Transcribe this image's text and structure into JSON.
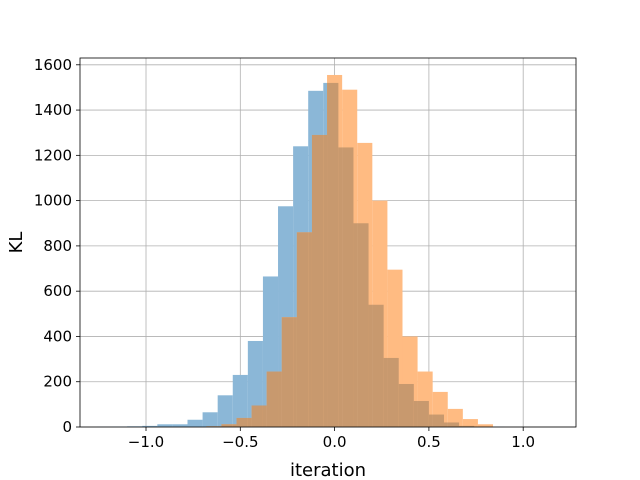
{
  "chart_data": {
    "type": "histogram",
    "xlabel": "iteration",
    "ylabel": "KL",
    "xlim": [
      -1.35,
      1.28
    ],
    "ylim": [
      0,
      1630
    ],
    "xticks": [
      -1.0,
      -0.5,
      0.0,
      0.5,
      1.0
    ],
    "xtick_labels": [
      "−1.0",
      "−0.5",
      "0.0",
      "0.5",
      "1.0"
    ],
    "yticks": [
      0,
      200,
      400,
      600,
      800,
      1000,
      1200,
      1400,
      1600
    ],
    "ytick_labels": [
      "0",
      "200",
      "400",
      "600",
      "800",
      "1000",
      "1200",
      "1400",
      "1600"
    ],
    "grid": true,
    "overlay_color": "#c8996e",
    "series": [
      {
        "color": "#8bb7d7",
        "bin_edges": [
          -1.26,
          -1.18,
          -1.1,
          -1.02,
          -0.94,
          -0.86,
          -0.78,
          -0.7,
          -0.62,
          -0.54,
          -0.46,
          -0.38,
          -0.3,
          -0.22,
          -0.14,
          -0.06,
          0.02,
          0.1,
          0.18,
          0.26,
          0.34,
          0.42,
          0.5,
          0.58,
          0.66,
          0.74,
          0.82,
          0.9,
          0.98,
          1.06,
          1.14
        ],
        "counts": [
          1,
          2,
          3,
          5,
          12,
          12,
          32,
          65,
          140,
          230,
          380,
          665,
          975,
          1240,
          1485,
          1520,
          1235,
          900,
          540,
          305,
          190,
          115,
          55,
          20,
          5,
          2,
          1,
          0,
          0,
          0
        ]
      },
      {
        "color": "#ffbb82",
        "bin_edges": [
          -0.68,
          -0.6,
          -0.52,
          -0.44,
          -0.36,
          -0.28,
          -0.2,
          -0.12,
          -0.04,
          0.04,
          0.12,
          0.2,
          0.28,
          0.36,
          0.44,
          0.52,
          0.6,
          0.68,
          0.76,
          0.84
        ],
        "counts": [
          3,
          12,
          40,
          95,
          245,
          485,
          860,
          1290,
          1555,
          1490,
          1255,
          1000,
          695,
          400,
          245,
          155,
          80,
          35,
          12
        ]
      }
    ]
  }
}
